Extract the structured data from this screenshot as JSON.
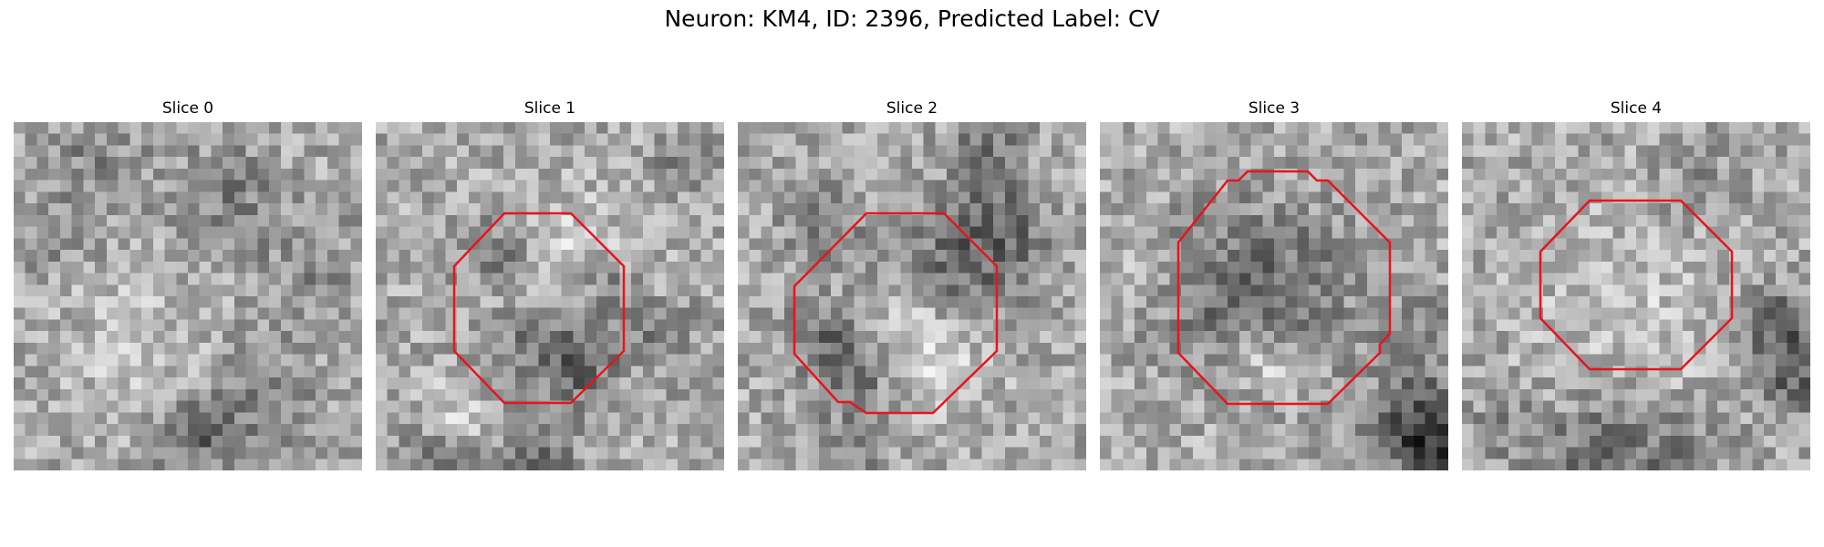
{
  "title": "Neuron: KM4, ID: 2396, Predicted Label: CV",
  "colors": {
    "contour": "#e8141c"
  },
  "panels": [
    {
      "label": "Slice 0",
      "has_contour": false
    },
    {
      "label": "Slice 1",
      "has_contour": true
    },
    {
      "label": "Slice 2",
      "has_contour": true
    },
    {
      "label": "Slice 3",
      "has_contour": true
    },
    {
      "label": "Slice 4",
      "has_contour": true
    }
  ]
}
